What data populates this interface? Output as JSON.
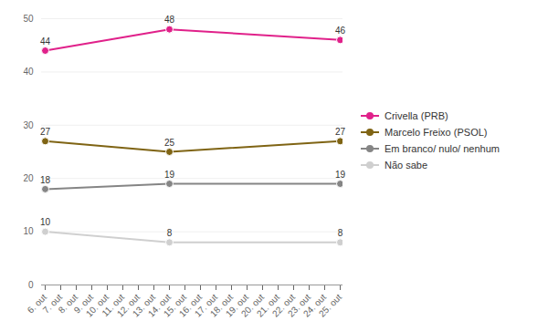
{
  "chart_data": {
    "type": "line",
    "x": [
      "6. out",
      "14. out",
      "25. out"
    ],
    "xticks": [
      "6. out",
      "7. out",
      "8. out",
      "9. out",
      "10. out",
      "11. out",
      "12. out",
      "13. out",
      "14. out",
      "15. out",
      "16. out",
      "17. out",
      "18. out",
      "19. out",
      "20. out",
      "21. out",
      "22. out",
      "23. out",
      "24. out",
      "25. out"
    ],
    "series": [
      {
        "name": "Crivella (PRB)",
        "color": "#e0218a",
        "values": [
          44,
          48,
          46
        ],
        "marker": "circle"
      },
      {
        "name": "Marcelo Freixo (PSOL)",
        "color": "#7f6414",
        "values": [
          27,
          25,
          27
        ],
        "marker": "circle"
      },
      {
        "name": "Em branco/ nulo/ nenhum",
        "color": "#858585",
        "values": [
          18,
          19,
          19
        ],
        "marker": "circle"
      },
      {
        "name": "Não sabe",
        "color": "#cfcfcf",
        "values": [
          10,
          8,
          8
        ],
        "marker": "circle"
      }
    ],
    "ylim": [
      0,
      50
    ],
    "yticks": [
      0,
      10,
      20,
      30,
      40,
      50
    ],
    "grid": true,
    "data_labels": true,
    "legend": "right"
  }
}
